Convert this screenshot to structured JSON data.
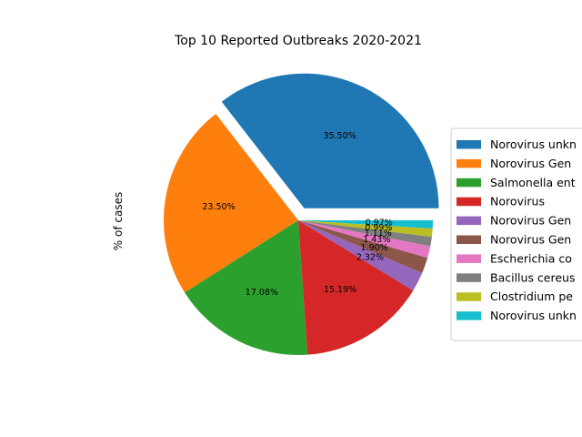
{
  "chart_data": {
    "type": "pie",
    "title": "Top 10 Reported Outbreaks 2020-2021",
    "ylabel": "% of cases",
    "legend_position": "right",
    "categories": [
      "Norovirus unkn",
      "Norovirus Gen",
      "Salmonella ent",
      "Norovirus",
      "Norovirus Gen",
      "Norovirus Gen",
      "Escherichia co",
      "Bacillus cereus",
      "Clostridium pe",
      "Norovirus unkn"
    ],
    "values": [
      35.5,
      23.5,
      17.08,
      15.19,
      2.32,
      1.9,
      1.43,
      1.11,
      0.99,
      0.97
    ],
    "labels": [
      "35.50%",
      "23.50%",
      "17.08%",
      "15.19%",
      "2.32%",
      "1.90%",
      "1.43%",
      "1.11%",
      "0.99%",
      "0.97%"
    ],
    "colors": [
      "#1f77b4",
      "#ff7f0e",
      "#2ca02c",
      "#d62728",
      "#9467bd",
      "#8c564b",
      "#e377c2",
      "#7f7f7f",
      "#bcbd22",
      "#17becf"
    ],
    "explode": [
      0.1,
      0,
      0,
      0,
      0,
      0,
      0,
      0,
      0,
      0
    ]
  }
}
